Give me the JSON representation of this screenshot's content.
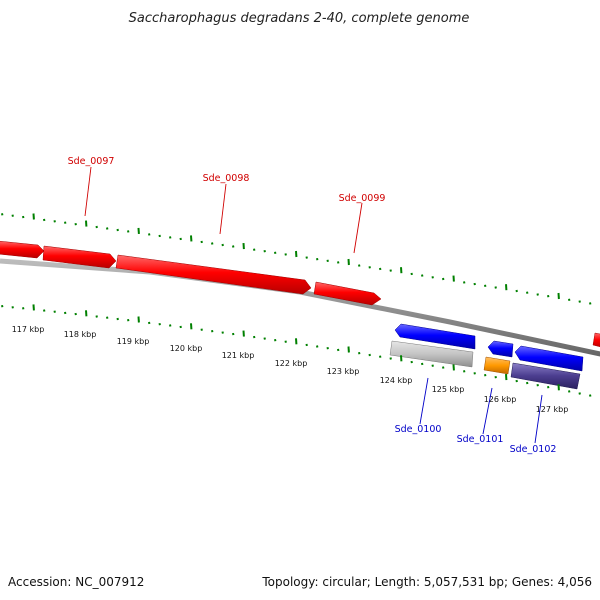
{
  "title": "Saccharophagus degradans 2-40, complete genome",
  "footer": {
    "accession": "Accession: NC_007912",
    "summary": "Topology: circular; Length: 5,057,531 bp; Genes: 4,056"
  },
  "kbp_labels": [
    "117 kbp",
    "118 kbp",
    "119 kbp",
    "120 kbp",
    "121 kbp",
    "122 kbp",
    "123 kbp",
    "124 kbp",
    "125 kbp",
    "126 kbp",
    "127 kbp"
  ],
  "forward_genes": [
    {
      "label": "Sde_0097",
      "color": "#ff0000"
    },
    {
      "label": "Sde_0098",
      "color": "#ff0000"
    },
    {
      "label": "Sde_0099",
      "color": "#ff0000"
    }
  ],
  "reverse_genes": [
    {
      "label": "Sde_0100",
      "color": "#0000ff"
    },
    {
      "label": "Sde_0101",
      "color": "#0000ff"
    },
    {
      "label": "Sde_0102",
      "color": "#0000ff"
    }
  ],
  "colors": {
    "forward_gene": "#ff0000",
    "reverse_gene": "#0000ff",
    "backbone": "#888888",
    "tick": "#008000",
    "feature_grey": "#c0c0c0",
    "feature_orange": "#ff9900",
    "feature_purple": "#4b3d8f"
  }
}
